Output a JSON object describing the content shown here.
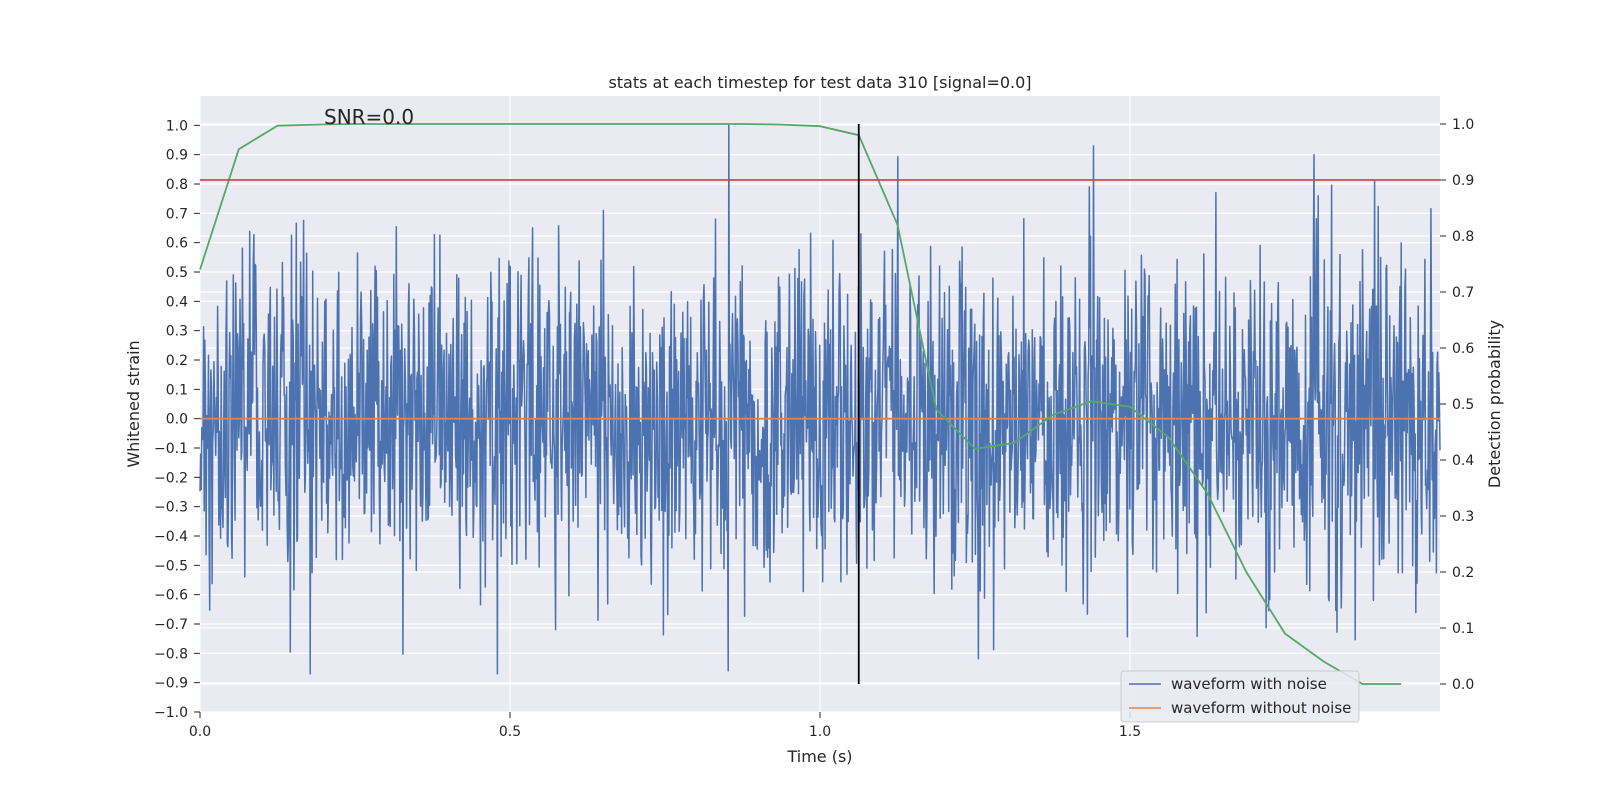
{
  "chart_data": {
    "type": "line",
    "title": "stats at each timestep for test data 310 [signal=0.0]",
    "xlabel": "Time (s)",
    "ylabel": "Whitened strain",
    "y2label": "Detection probability",
    "annotation": "SNR=0.0",
    "xlim": [
      0.0,
      2.0
    ],
    "ylim": [
      -1.0,
      1.1
    ],
    "y2lim": [
      -0.05,
      1.05
    ],
    "xticks": [
      0.0,
      0.5,
      1.0,
      1.5
    ],
    "xtick_labels": [
      "0.0",
      "0.5",
      "1.0",
      "1.5"
    ],
    "yticks": [
      -1.0,
      -0.9,
      -0.8,
      -0.7,
      -0.6,
      -0.5,
      -0.4,
      -0.3,
      -0.2,
      -0.1,
      0.0,
      0.1,
      0.2,
      0.3,
      0.4,
      0.5,
      0.6,
      0.7,
      0.8,
      0.9,
      1.0
    ],
    "ytick_labels": [
      "−1.0",
      "−0.9",
      "−0.8",
      "−0.7",
      "−0.6",
      "−0.5",
      "−0.4",
      "−0.3",
      "−0.2",
      "−0.1",
      "0.0",
      "0.1",
      "0.2",
      "0.3",
      "0.4",
      "0.5",
      "0.6",
      "0.7",
      "0.8",
      "0.9",
      "1.0"
    ],
    "y2ticks": [
      0.0,
      0.1,
      0.2,
      0.3,
      0.4,
      0.5,
      0.6,
      0.7,
      0.8,
      0.9,
      1.0
    ],
    "y2tick_labels": [
      "0.0",
      "0.1",
      "0.2",
      "0.3",
      "0.4",
      "0.5",
      "0.6",
      "0.7",
      "0.8",
      "0.9",
      "1.0"
    ],
    "grid": true,
    "legend_position": "bottom-right",
    "series": [
      {
        "name": "waveform with noise",
        "color": "#4c72b0",
        "axis": "left",
        "style": "noise",
        "x_range": [
          0.0,
          2.0
        ],
        "n_samples": 2048,
        "approx_std": 0.28,
        "highlights": [
          [
            0.853,
            1.0
          ],
          [
            0.852,
            -0.86
          ],
          [
            1.797,
            0.9
          ],
          [
            0.48,
            -0.87
          ],
          [
            0.178,
            -0.87
          ],
          [
            1.434,
            0.79
          ]
        ]
      },
      {
        "name": "waveform without noise",
        "color": "#dd8452",
        "axis": "left",
        "x": [
          0.0,
          2.0
        ],
        "y": [
          0.0,
          0.0
        ]
      },
      {
        "name": "detection probability",
        "color": "#55a868",
        "axis": "right",
        "x": [
          0.0,
          0.0625,
          0.125,
          0.1875,
          0.25,
          0.3125,
          0.375,
          0.4375,
          0.5,
          0.5625,
          0.625,
          0.6875,
          0.75,
          0.8125,
          0.875,
          0.9375,
          1.0,
          1.0625,
          1.125,
          1.1875,
          1.25,
          1.3125,
          1.375,
          1.4375,
          1.5,
          1.5625,
          1.625,
          1.6875,
          1.75,
          1.8125,
          1.875,
          1.9375
        ],
        "y": [
          0.74,
          0.955,
          0.997,
          0.999,
          1.0,
          1.0,
          1.0,
          1.0,
          1.0,
          1.0,
          1.0,
          1.0,
          1.0,
          1.0,
          1.0,
          0.999,
          0.996,
          0.98,
          0.82,
          0.49,
          0.42,
          0.43,
          0.48,
          0.505,
          0.495,
          0.44,
          0.34,
          0.2,
          0.09,
          0.04,
          0.0,
          0.0
        ]
      }
    ],
    "hlines": [
      {
        "y2": 0.9,
        "color": "#c44e52"
      }
    ],
    "vlines": [
      {
        "x": 1.0625,
        "y2_from": 0.0,
        "y2_to": 1.0,
        "color": "#000000"
      }
    ],
    "legend": [
      {
        "label": "waveform with noise",
        "color": "#4c72b0"
      },
      {
        "label": "waveform without noise",
        "color": "#dd8452"
      }
    ]
  }
}
